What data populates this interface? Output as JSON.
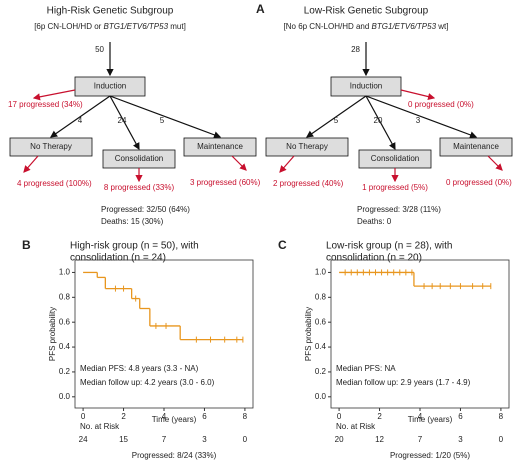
{
  "flow": {
    "label": "A",
    "diagrams": [
      {
        "title": "High-Risk Genetic Subgroup",
        "subtitle_parts": [
          "[6p CN-LOH/HD or ",
          "BTG1/ETV6/TP53",
          " mut]"
        ],
        "total": 50,
        "first": "Induction",
        "first_progressed": "17 progressed (34%)",
        "branches": [
          {
            "count": 4,
            "label": "No Therapy",
            "progressed": "4 progressed (100%)"
          },
          {
            "count": 24,
            "label": "Consolidation",
            "progressed": "8 progressed (33%)"
          },
          {
            "count": 5,
            "label": "Maintenance",
            "progressed": "3 progressed (60%)"
          }
        ],
        "summary": [
          "Progressed: 32/50 (64%)",
          "Deaths: 15 (30%)"
        ]
      },
      {
        "title": "Low-Risk Genetic Subgroup",
        "subtitle_parts": [
          "[No 6p CN-LOH/HD and ",
          "BTG1/ETV6/TP53",
          " wt]"
        ],
        "total": 28,
        "first": "Induction",
        "first_progressed": "0 progressed (0%)",
        "branches": [
          {
            "count": 5,
            "label": "No Therapy",
            "progressed": "2 progressed (40%)"
          },
          {
            "count": 20,
            "label": "Consolidation",
            "progressed": "1 progressed (5%)"
          },
          {
            "count": 3,
            "label": "Maintenance",
            "progressed": "0 progressed (0%)"
          }
        ],
        "summary": [
          "Progressed: 3/28 (11%)",
          "Deaths: 0"
        ]
      }
    ]
  },
  "chart_data": [
    {
      "type": "line",
      "label": "B",
      "title": [
        "High-risk group (n = 50), with",
        "consolidation (n = 24)"
      ],
      "color": "#e8961e",
      "x": [
        0,
        0.7,
        1.1,
        2.4,
        2.8,
        3.3,
        4.8
      ],
      "values": [
        1,
        0.96,
        0.87,
        0.79,
        0.71,
        0.57,
        0.46
      ],
      "end_time": 7.9,
      "censor_x": [
        1.6,
        2.0,
        2.6,
        3.6,
        4.1,
        5.6,
        6.3,
        7.0,
        7.6,
        7.9
      ],
      "censor_values": [
        0.87,
        0.87,
        0.79,
        0.57,
        0.57,
        0.46,
        0.46,
        0.46,
        0.46,
        0.46
      ],
      "xlim": [
        -0.4,
        8.4
      ],
      "ylim": [
        -0.09,
        1.1
      ],
      "xticks": [
        0,
        2,
        4,
        6,
        8
      ],
      "yticks": [
        {
          "value": 0,
          "label": "0.0"
        },
        {
          "value": 0.2,
          "label": "0.2"
        },
        {
          "value": 0.4,
          "label": "0.4"
        },
        {
          "value": 0.6,
          "label": "0.6"
        },
        {
          "value": 0.8,
          "label": "0.8"
        },
        {
          "value": 1,
          "label": "1.0"
        }
      ],
      "xlabel": "Time (years)",
      "ylabel": "PFS probability",
      "annotations": [
        "Median PFS: 4.8 years (3.3 - NA)",
        "Median follow up: 4.2 years (3.0 - 6.0)"
      ],
      "risk_label": "No. at Risk",
      "risk_values": [
        24,
        15,
        7,
        3,
        0
      ],
      "footer": "Progressed: 8/24 (33%)"
    },
    {
      "type": "line",
      "label": "C",
      "title": [
        "Low-risk group (n = 28), with",
        "consolidation (n = 20)"
      ],
      "color": "#e8961e",
      "x": [
        0,
        3.7
      ],
      "values": [
        1,
        0.89
      ],
      "end_time": 7.5,
      "censor_x": [
        0.3,
        0.6,
        0.9,
        1.2,
        1.5,
        1.8,
        2.1,
        2.4,
        2.7,
        3.0,
        3.3,
        3.6,
        4.2,
        4.6,
        5.0,
        5.5,
        6.0,
        6.6,
        7.1,
        7.5
      ],
      "censor_values": [
        1,
        1,
        1,
        1,
        1,
        1,
        1,
        1,
        1,
        1,
        1,
        1,
        0.89,
        0.89,
        0.89,
        0.89,
        0.89,
        0.89,
        0.89,
        0.89
      ],
      "xlim": [
        -0.4,
        8.4
      ],
      "ylim": [
        -0.09,
        1.1
      ],
      "xticks": [
        0,
        2,
        4,
        6,
        8
      ],
      "yticks": [
        {
          "value": 0,
          "label": "0.0"
        },
        {
          "value": 0.2,
          "label": "0.2"
        },
        {
          "value": 0.4,
          "label": "0.4"
        },
        {
          "value": 0.6,
          "label": "0.6"
        },
        {
          "value": 0.8,
          "label": "0.8"
        },
        {
          "value": 1,
          "label": "1.0"
        }
      ],
      "xlabel": "Time (years)",
      "ylabel": "PFS probability",
      "annotations": [
        "Median PFS: NA",
        "Median follow up: 2.9 years (1.7 - 4.9)"
      ],
      "risk_label": "No. at Risk",
      "risk_values": [
        20,
        12,
        7,
        3,
        0
      ],
      "footer": "Progressed: 1/20 (5%)"
    }
  ]
}
